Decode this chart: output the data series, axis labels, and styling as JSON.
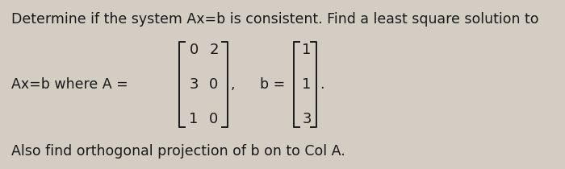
{
  "line1": "Determine if the system Ax=b is consistent. Find a least square solution to",
  "line2_prefix": "Ax=b where A =",
  "matrix_A_rows": [
    [
      "0",
      "2"
    ],
    [
      "3",
      "0"
    ],
    [
      "1",
      "0"
    ]
  ],
  "comma": ",",
  "b_label": "b =",
  "vector_b": [
    "1",
    "1",
    "3"
  ],
  "period": ".",
  "line3": "Also find orthogonal projection of b on to Col A.",
  "bg_color": "#d3cdc4",
  "text_color": "#1a1a1a",
  "font_size_main": 12.5,
  "font_size_matrix": 13.0
}
